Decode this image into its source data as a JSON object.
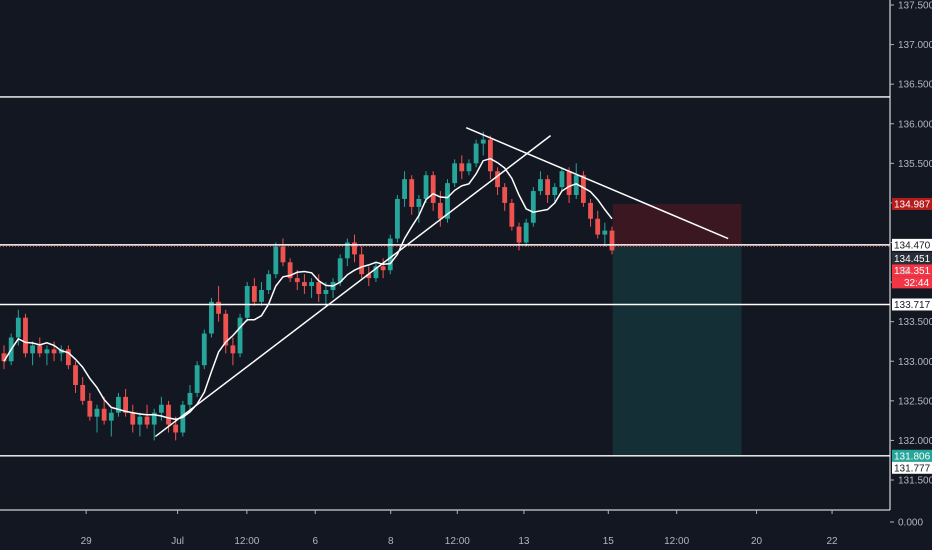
{
  "chart_data": {
    "type": "candlestick",
    "price_ticks": [
      "137.500",
      "137.000",
      "136.500",
      "136.000",
      "135.500",
      "135.000",
      "134.500",
      "134.000",
      "133.500",
      "133.000",
      "132.500",
      "132.000",
      "131.500",
      "0.000"
    ],
    "time_ticks": [
      "29",
      "Jul",
      "12:00",
      "6",
      "8",
      "12:00",
      "13",
      "15",
      "12:00",
      "20",
      "22"
    ],
    "horizontal_levels": [
      {
        "label": "136.339",
        "price": 136.339
      },
      {
        "label": "134.470",
        "price": 134.47
      },
      {
        "label": "133.717",
        "price": 133.717
      },
      {
        "label": "131.806",
        "price": 131.806
      }
    ],
    "badges": {
      "stop": {
        "label": "134.987",
        "color": "#b71c1c"
      },
      "level_a": {
        "label": "134.470",
        "color": "#ffffff"
      },
      "current": {
        "label": "134.451",
        "color": "#2a2e39"
      },
      "last": {
        "label": "134.351",
        "color": "#f23645"
      },
      "countdown": {
        "label": "32:44",
        "color": "#f23645"
      },
      "hidden": {
        "label": "13",
        "color": "#131722"
      },
      "level_b": {
        "label": "133.717",
        "color": "#ffffff"
      },
      "target": {
        "label": "131.806",
        "color": "#26a69a"
      },
      "target_b": {
        "label": "131.777",
        "color": "#ffffff"
      }
    },
    "trendlines": [
      {
        "name": "ascending-support",
        "from": {
          "t": 0.175,
          "p": 132.05
        },
        "to": {
          "t": 0.62,
          "p": 135.85
        }
      },
      {
        "name": "descending-resistance",
        "from": {
          "t": 0.525,
          "p": 135.95
        },
        "to": {
          "t": 0.82,
          "p": 134.55
        }
      }
    ],
    "position": {
      "entry": 134.451,
      "stop": 134.987,
      "target": 131.806,
      "t_start": 0.69,
      "t_end": 0.835
    },
    "ohlc": [
      [
        133.1,
        133.2,
        132.9,
        133.0
      ],
      [
        133.0,
        133.35,
        132.95,
        133.3
      ],
      [
        133.3,
        133.65,
        133.2,
        133.55
      ],
      [
        133.55,
        133.6,
        133.05,
        133.1
      ],
      [
        133.1,
        133.25,
        132.95,
        133.2
      ],
      [
        133.2,
        133.3,
        133.05,
        133.1
      ],
      [
        133.1,
        133.2,
        132.95,
        133.15
      ],
      [
        133.15,
        133.25,
        133.0,
        133.1
      ],
      [
        133.1,
        133.2,
        133.0,
        133.15
      ],
      [
        133.15,
        133.2,
        132.9,
        132.95
      ],
      [
        132.95,
        133.0,
        132.6,
        132.7
      ],
      [
        132.7,
        132.8,
        132.45,
        132.5
      ],
      [
        132.5,
        132.6,
        132.25,
        132.3
      ],
      [
        132.3,
        132.45,
        132.1,
        132.4
      ],
      [
        132.4,
        132.55,
        132.2,
        132.25
      ],
      [
        132.25,
        132.4,
        132.05,
        132.35
      ],
      [
        132.35,
        132.6,
        132.3,
        132.55
      ],
      [
        132.55,
        132.65,
        132.3,
        132.35
      ],
      [
        132.35,
        132.45,
        132.1,
        132.2
      ],
      [
        132.2,
        132.35,
        132.05,
        132.3
      ],
      [
        132.3,
        132.45,
        132.15,
        132.2
      ],
      [
        132.2,
        132.4,
        132.0,
        132.35
      ],
      [
        132.35,
        132.55,
        132.25,
        132.45
      ],
      [
        132.45,
        132.5,
        132.1,
        132.2
      ],
      [
        132.2,
        132.3,
        132.0,
        132.1
      ],
      [
        132.1,
        132.5,
        132.05,
        132.45
      ],
      [
        132.45,
        132.7,
        132.35,
        132.6
      ],
      [
        132.6,
        133.0,
        132.55,
        132.95
      ],
      [
        132.95,
        133.4,
        132.9,
        133.35
      ],
      [
        133.35,
        133.8,
        133.3,
        133.75
      ],
      [
        133.75,
        133.95,
        133.5,
        133.6
      ],
      [
        133.6,
        133.65,
        133.1,
        133.2
      ],
      [
        133.2,
        133.3,
        132.95,
        133.1
      ],
      [
        133.1,
        133.6,
        133.05,
        133.55
      ],
      [
        133.55,
        134.0,
        133.5,
        133.95
      ],
      [
        133.95,
        134.05,
        133.7,
        133.75
      ],
      [
        133.75,
        134.0,
        133.7,
        133.9
      ],
      [
        133.9,
        134.15,
        133.85,
        134.1
      ],
      [
        134.1,
        134.5,
        134.05,
        134.45
      ],
      [
        134.45,
        134.55,
        134.2,
        134.25
      ],
      [
        134.25,
        134.3,
        134.0,
        134.05
      ],
      [
        134.05,
        134.15,
        133.9,
        134.0
      ],
      [
        134.0,
        134.1,
        133.85,
        133.95
      ],
      [
        133.95,
        134.05,
        133.8,
        134.0
      ],
      [
        134.0,
        134.1,
        133.75,
        133.85
      ],
      [
        133.85,
        134.0,
        133.7,
        133.9
      ],
      [
        133.9,
        134.05,
        133.8,
        134.0
      ],
      [
        134.0,
        134.35,
        133.95,
        134.3
      ],
      [
        134.3,
        134.55,
        134.2,
        134.5
      ],
      [
        134.5,
        134.6,
        134.25,
        134.35
      ],
      [
        134.35,
        134.45,
        134.05,
        134.1
      ],
      [
        134.1,
        134.2,
        133.95,
        134.05
      ],
      [
        134.05,
        134.25,
        134.0,
        134.2
      ],
      [
        134.2,
        134.3,
        134.05,
        134.15
      ],
      [
        134.15,
        134.6,
        134.1,
        134.55
      ],
      [
        134.55,
        135.1,
        134.5,
        135.05
      ],
      [
        135.05,
        135.4,
        134.95,
        135.3
      ],
      [
        135.3,
        135.35,
        134.85,
        134.95
      ],
      [
        134.95,
        135.1,
        134.75,
        135.05
      ],
      [
        135.05,
        135.4,
        135.0,
        135.35
      ],
      [
        135.35,
        135.4,
        134.9,
        135.0
      ],
      [
        135.0,
        135.15,
        134.7,
        134.8
      ],
      [
        134.8,
        135.3,
        134.75,
        135.25
      ],
      [
        135.25,
        135.55,
        135.2,
        135.5
      ],
      [
        135.5,
        135.6,
        135.3,
        135.4
      ],
      [
        135.4,
        135.55,
        135.35,
        135.5
      ],
      [
        135.5,
        135.8,
        135.45,
        135.75
      ],
      [
        135.75,
        135.9,
        135.6,
        135.8
      ],
      [
        135.8,
        135.85,
        135.3,
        135.4
      ],
      [
        135.4,
        135.45,
        135.1,
        135.2
      ],
      [
        135.2,
        135.25,
        134.9,
        135.0
      ],
      [
        135.0,
        135.05,
        134.65,
        134.7
      ],
      [
        134.7,
        134.75,
        134.4,
        134.5
      ],
      [
        134.5,
        134.8,
        134.45,
        134.75
      ],
      [
        134.75,
        135.2,
        134.7,
        135.15
      ],
      [
        135.15,
        135.4,
        135.1,
        135.3
      ],
      [
        135.3,
        135.35,
        135.0,
        135.1
      ],
      [
        135.1,
        135.25,
        135.0,
        135.2
      ],
      [
        135.2,
        135.45,
        135.15,
        135.4
      ],
      [
        135.4,
        135.45,
        135.0,
        135.1
      ],
      [
        135.1,
        135.5,
        135.05,
        135.35
      ],
      [
        135.35,
        135.4,
        134.95,
        135.0
      ],
      [
        135.0,
        135.05,
        134.7,
        134.8
      ],
      [
        134.8,
        134.9,
        134.55,
        134.6
      ],
      [
        134.6,
        134.75,
        134.45,
        134.65
      ],
      [
        134.65,
        134.7,
        134.35,
        134.4
      ]
    ]
  }
}
